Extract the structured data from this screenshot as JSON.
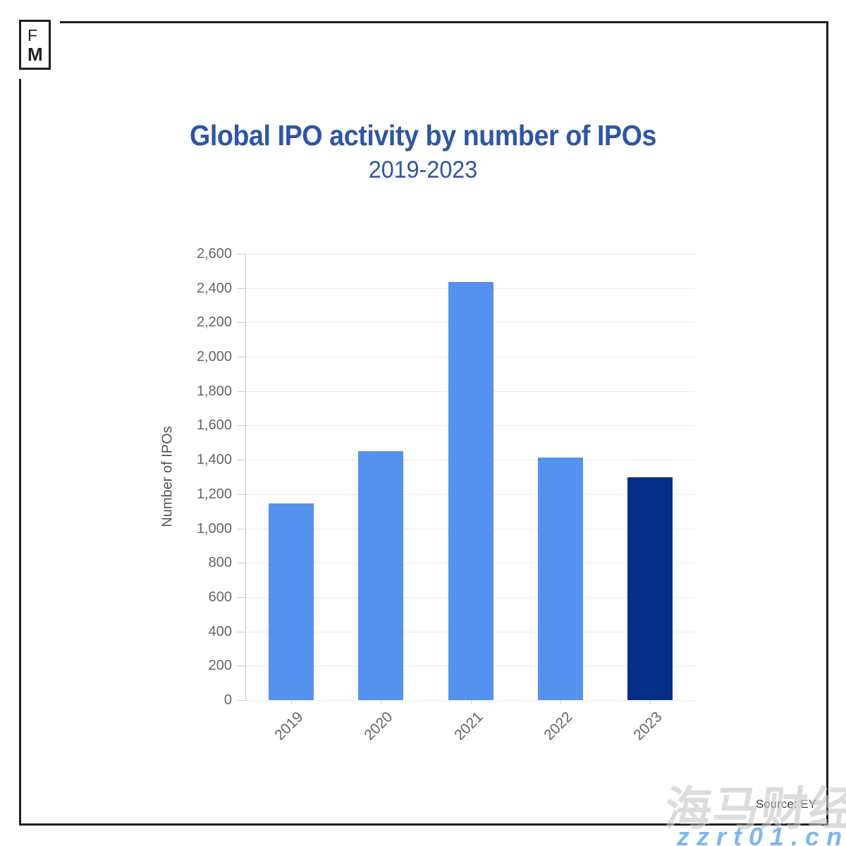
{
  "logo": {
    "line1": "F",
    "line2": "M"
  },
  "header": {
    "title": "Global IPO activity by number of IPOs",
    "subtitle": "2019-2023",
    "title_color": "#2e56a6"
  },
  "chart_data": {
    "type": "bar",
    "title": "Global IPO activity by number of IPOs",
    "subtitle": "2019-2023",
    "categories": [
      "2019",
      "2020",
      "2021",
      "2022",
      "2023"
    ],
    "values": [
      1146,
      1452,
      2436,
      1415,
      1298
    ],
    "bar_colors": [
      "#5592ef",
      "#5592ef",
      "#5592ef",
      "#5592ef",
      "#052e86"
    ],
    "xlabel": "",
    "ylabel": "Number of IPOs",
    "ylim": [
      0,
      2600
    ],
    "ytick_step": 200,
    "grid": "horizontal-only",
    "legend": "none",
    "x_label_rotation_deg": -45
  },
  "footer": {
    "source": "Source: EY"
  },
  "watermark": {
    "cjk_text": "海马财经",
    "url_text": "zzrt01.cn",
    "url_color": "#7cb8f0"
  }
}
